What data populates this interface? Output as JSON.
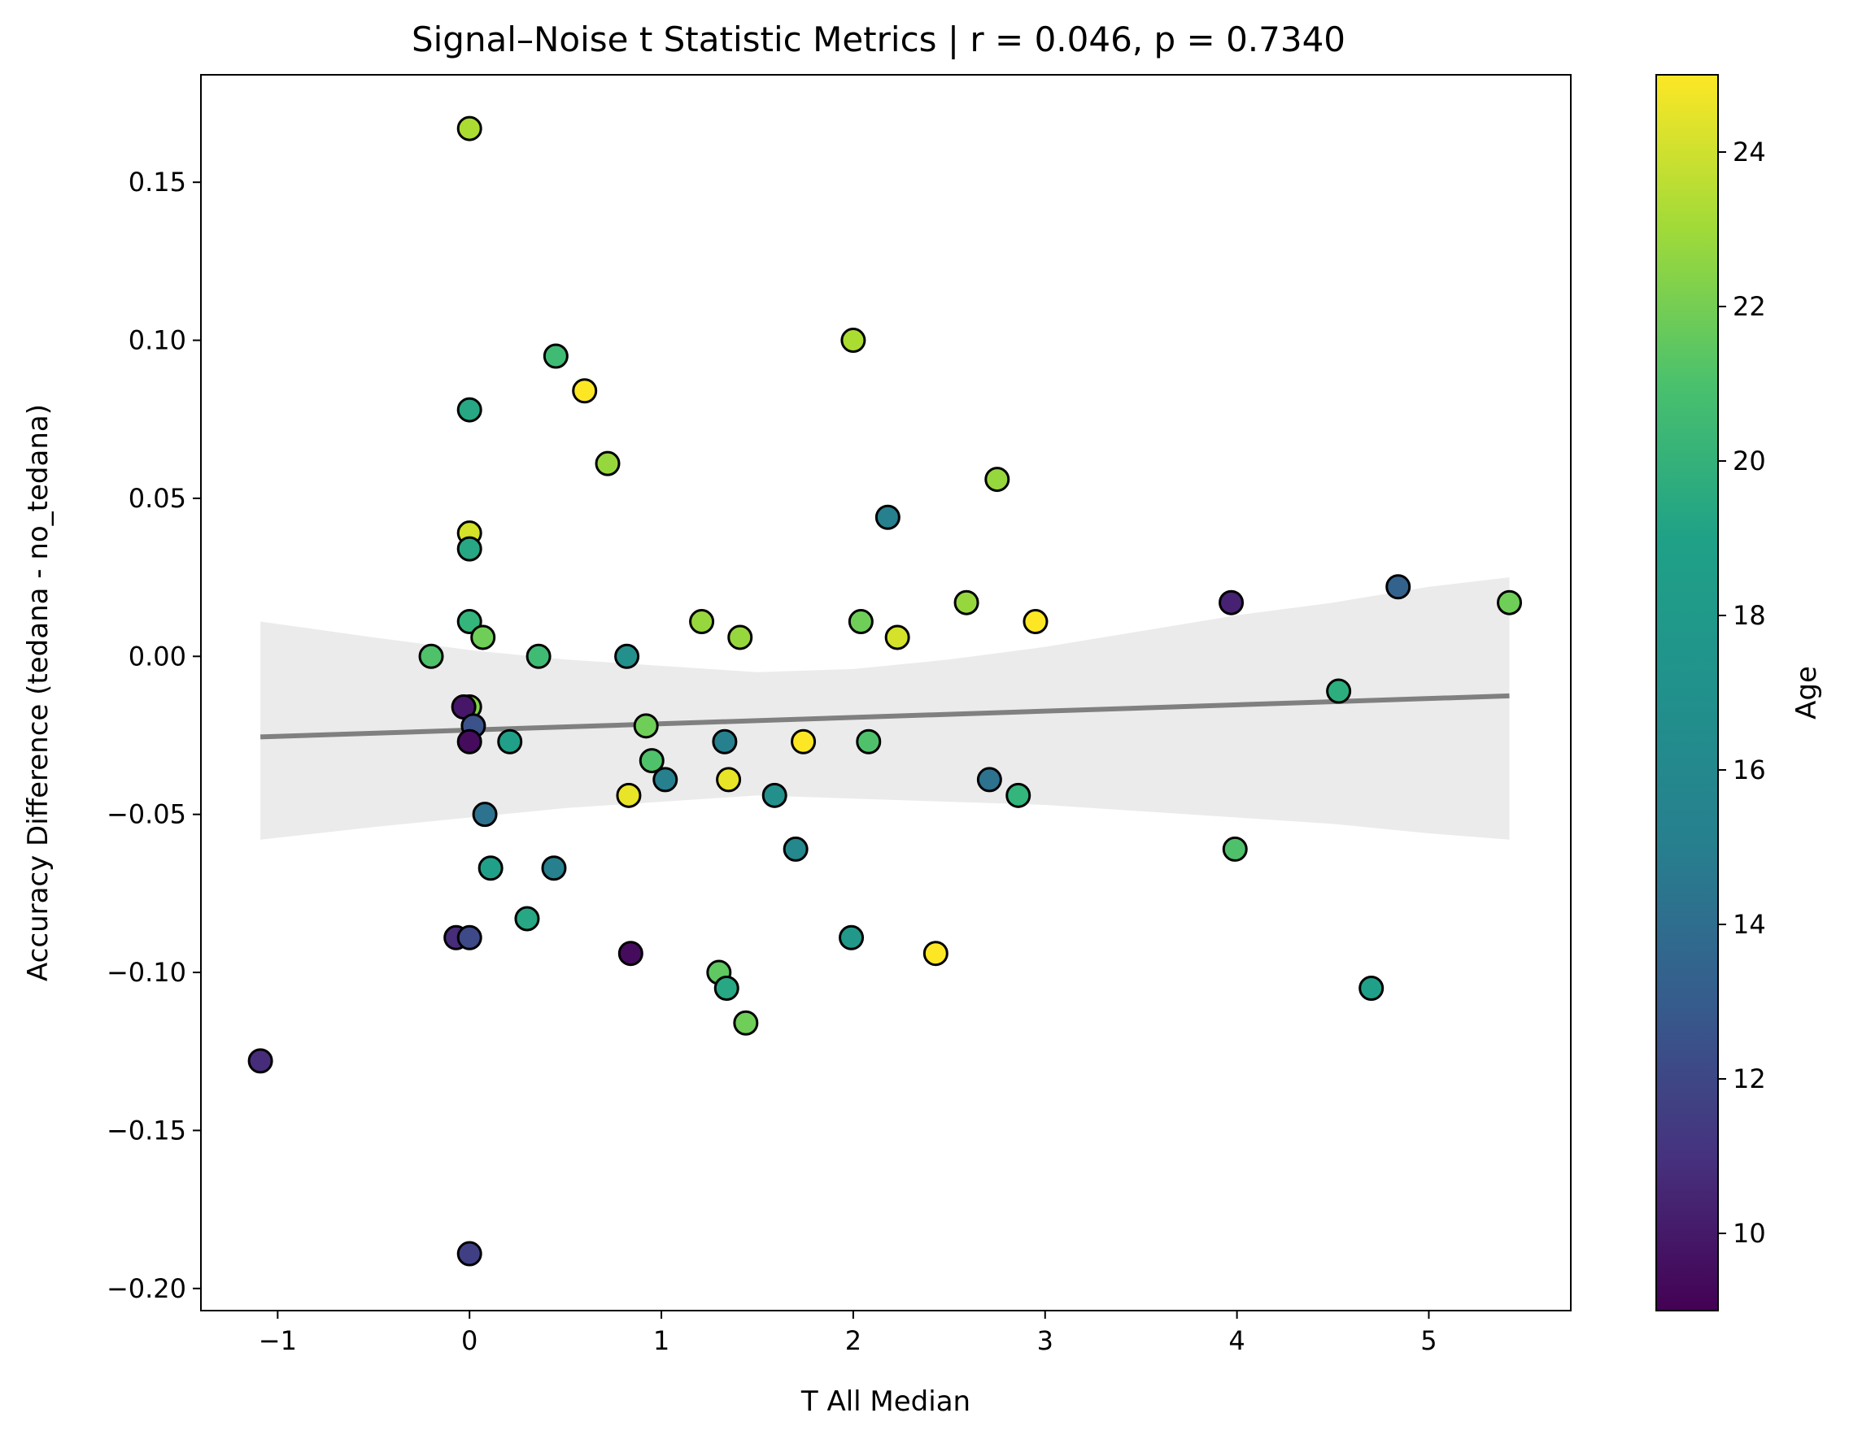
{
  "chart_data": {
    "type": "scatter",
    "title": "Signal–Noise t Statistic Metrics | r = 0.046, p = 0.7340",
    "xlabel": "T All Median",
    "ylabel": "Accuracy Difference (tedana - no_tedana)",
    "xlim": [
      -1.4,
      5.74
    ],
    "ylim": [
      -0.207,
      0.184
    ],
    "xticks": [
      -1,
      0,
      1,
      2,
      3,
      4,
      5
    ],
    "xtick_labels": [
      "−1",
      "0",
      "1",
      "2",
      "3",
      "4",
      "5"
    ],
    "yticks": [
      -0.2,
      -0.15,
      -0.1,
      -0.05,
      0.0,
      0.05,
      0.1,
      0.15
    ],
    "ytick_labels": [
      "−0.20",
      "−0.15",
      "−0.10",
      "−0.05",
      "0.00",
      "0.05",
      "0.10",
      "0.15"
    ],
    "grid": false,
    "colorbar": {
      "label": "Age",
      "range": [
        9,
        25
      ],
      "ticks": [
        10,
        12,
        14,
        16,
        18,
        20,
        22,
        24
      ],
      "tick_labels": [
        "10",
        "12",
        "14",
        "16",
        "18",
        "20",
        "22",
        "24"
      ],
      "colormap": "viridis"
    },
    "regression": {
      "color": "#808080",
      "x": [
        -1.09,
        5.42
      ],
      "y": [
        -0.0255,
        -0.0125
      ],
      "ci_color": "#ebebeb",
      "ci_x": [
        -1.09,
        -0.5,
        0.0,
        0.5,
        1.0,
        1.5,
        2.0,
        2.5,
        3.0,
        3.5,
        4.0,
        4.5,
        5.0,
        5.42
      ],
      "ci_upper": [
        0.011,
        0.006,
        0.002,
        -0.001,
        -0.003,
        -0.005,
        -0.004,
        -0.001,
        0.003,
        0.008,
        0.013,
        0.017,
        0.022,
        0.025
      ],
      "ci_lower": [
        -0.058,
        -0.054,
        -0.051,
        -0.048,
        -0.046,
        -0.044,
        -0.045,
        -0.046,
        -0.047,
        -0.049,
        -0.051,
        -0.053,
        -0.056,
        -0.058
      ]
    },
    "points": [
      {
        "x": 0.0,
        "y": 0.167,
        "age": 23
      },
      {
        "x": 0.0,
        "y": 0.078,
        "age": 18.5
      },
      {
        "x": 0.0,
        "y": 0.039,
        "age": 24
      },
      {
        "x": 0.0,
        "y": 0.034,
        "age": 18.5
      },
      {
        "x": 0.0,
        "y": 0.011,
        "age": 19.5
      },
      {
        "x": -0.2,
        "y": 0.0,
        "age": 20.5
      },
      {
        "x": 0.07,
        "y": 0.006,
        "age": 21.5
      },
      {
        "x": 0.0,
        "y": -0.016,
        "age": 22
      },
      {
        "x": -0.03,
        "y": -0.016,
        "age": 10
      },
      {
        "x": 0.02,
        "y": -0.022,
        "age": 13
      },
      {
        "x": 0.0,
        "y": -0.027,
        "age": 9.5
      },
      {
        "x": 0.21,
        "y": -0.027,
        "age": 18
      },
      {
        "x": 0.08,
        "y": -0.05,
        "age": 15
      },
      {
        "x": 0.11,
        "y": -0.067,
        "age": 18
      },
      {
        "x": -0.07,
        "y": -0.089,
        "age": 11
      },
      {
        "x": 0.0,
        "y": -0.089,
        "age": 12.5
      },
      {
        "x": 0.0,
        "y": -0.189,
        "age": 12
      },
      {
        "x": -1.09,
        "y": -0.128,
        "age": 11
      },
      {
        "x": 0.45,
        "y": 0.095,
        "age": 20
      },
      {
        "x": 0.6,
        "y": 0.084,
        "age": 25
      },
      {
        "x": 0.72,
        "y": 0.061,
        "age": 22.5
      },
      {
        "x": 0.36,
        "y": 0.0,
        "age": 20
      },
      {
        "x": 0.82,
        "y": 0.0,
        "age": 17
      },
      {
        "x": 0.3,
        "y": -0.083,
        "age": 18.5
      },
      {
        "x": 0.44,
        "y": -0.067,
        "age": 16
      },
      {
        "x": 0.83,
        "y": -0.044,
        "age": 24.5
      },
      {
        "x": 0.84,
        "y": -0.094,
        "age": 9.5
      },
      {
        "x": 0.92,
        "y": -0.022,
        "age": 21.5
      },
      {
        "x": 0.95,
        "y": -0.033,
        "age": 20.5
      },
      {
        "x": 1.02,
        "y": -0.039,
        "age": 16
      },
      {
        "x": 1.21,
        "y": 0.011,
        "age": 22.5
      },
      {
        "x": 1.41,
        "y": 0.006,
        "age": 22.5
      },
      {
        "x": 1.33,
        "y": -0.027,
        "age": 16
      },
      {
        "x": 1.35,
        "y": -0.039,
        "age": 24.5
      },
      {
        "x": 1.3,
        "y": -0.1,
        "age": 21
      },
      {
        "x": 1.34,
        "y": -0.105,
        "age": 18.5
      },
      {
        "x": 1.44,
        "y": -0.116,
        "age": 21.5
      },
      {
        "x": 1.59,
        "y": -0.044,
        "age": 17
      },
      {
        "x": 1.7,
        "y": -0.061,
        "age": 16.5
      },
      {
        "x": 1.74,
        "y": -0.027,
        "age": 25
      },
      {
        "x": 2.0,
        "y": 0.1,
        "age": 23
      },
      {
        "x": 2.04,
        "y": 0.011,
        "age": 21.5
      },
      {
        "x": 2.08,
        "y": -0.027,
        "age": 20.5
      },
      {
        "x": 1.99,
        "y": -0.089,
        "age": 17.5
      },
      {
        "x": 2.18,
        "y": 0.044,
        "age": 16
      },
      {
        "x": 2.23,
        "y": 0.006,
        "age": 24
      },
      {
        "x": 2.43,
        "y": -0.094,
        "age": 25
      },
      {
        "x": 2.59,
        "y": 0.017,
        "age": 22.5
      },
      {
        "x": 2.75,
        "y": 0.056,
        "age": 22.5
      },
      {
        "x": 2.71,
        "y": -0.039,
        "age": 15
      },
      {
        "x": 2.86,
        "y": -0.044,
        "age": 19.5
      },
      {
        "x": 2.95,
        "y": 0.011,
        "age": 25
      },
      {
        "x": 3.97,
        "y": 0.017,
        "age": 10.5
      },
      {
        "x": 3.99,
        "y": -0.061,
        "age": 20.5
      },
      {
        "x": 4.53,
        "y": -0.011,
        "age": 19
      },
      {
        "x": 4.7,
        "y": -0.105,
        "age": 18
      },
      {
        "x": 4.84,
        "y": 0.022,
        "age": 14
      },
      {
        "x": 5.42,
        "y": 0.017,
        "age": 21.5
      }
    ]
  }
}
